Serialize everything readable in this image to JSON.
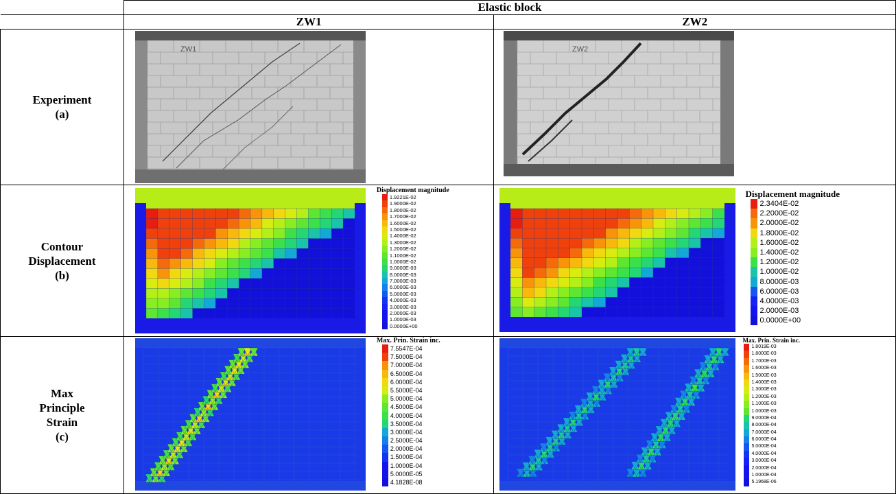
{
  "header": {
    "group": "Elastic block",
    "col1": "ZW1",
    "col2": "ZW2"
  },
  "rows": [
    {
      "label": [
        "Experiment",
        "(a)"
      ]
    },
    {
      "label": [
        "Contour",
        "Displacement",
        "(b)"
      ]
    },
    {
      "label": [
        "Max",
        "Principle",
        "Strain",
        "(c)"
      ]
    }
  ],
  "photos": {
    "zw1_tag": "ZW1",
    "zw2_tag": "ZW2"
  },
  "legends": {
    "disp_zw1": {
      "title": "Displacement magnitude",
      "values": [
        "1.9221E-02",
        "1.9000E-02",
        "1.8000E-02",
        "1.7000E-02",
        "1.6000E-02",
        "1.5000E-02",
        "1.4000E-02",
        "1.3000E-02",
        "1.2000E-02",
        "1.1000E-02",
        "1.0000E-02",
        "9.0000E-03",
        "8.0000E-03",
        "7.0000E-03",
        "6.0000E-03",
        "5.0000E-03",
        "4.0000E-03",
        "3.0000E-03",
        "2.0000E-03",
        "1.0000E-03",
        "0.0000E+00"
      ]
    },
    "disp_zw2": {
      "title": "Displacement magnitude",
      "values": [
        "2.3404E-02",
        "2.2000E-02",
        "2.0000E-02",
        "1.8000E-02",
        "1.6000E-02",
        "1.4000E-02",
        "1.2000E-02",
        "1.0000E-02",
        "8.0000E-03",
        "6.0000E-03",
        "4.0000E-03",
        "2.0000E-03",
        "0.0000E+00"
      ]
    },
    "strain_zw1": {
      "title": "Max. Prin. Strain inc.",
      "values": [
        "7.5547E-04",
        "7.5000E-04",
        "7.0000E-04",
        "6.5000E-04",
        "6.0000E-04",
        "5.5000E-04",
        "5.0000E-04",
        "4.5000E-04",
        "4.0000E-04",
        "3.5000E-04",
        "3.0000E-04",
        "2.5000E-04",
        "2.0000E-04",
        "1.5000E-04",
        "1.0000E-04",
        "5.0000E-05",
        "4.1828E-08"
      ]
    },
    "strain_zw2": {
      "title": "Max. Prin. Strain inc.",
      "values": [
        "1.8019E-03",
        "1.8000E-03",
        "1.7000E-03",
        "1.6000E-03",
        "1.5000E-03",
        "1.4000E-03",
        "1.3000E-03",
        "1.2000E-03",
        "1.1000E-03",
        "1.0000E-03",
        "9.0000E-04",
        "8.0000E-04",
        "7.0000E-04",
        "6.0000E-04",
        "5.0000E-04",
        "4.0000E-04",
        "3.0000E-04",
        "2.0000E-04",
        "1.0000E-04",
        "5.1968E-06"
      ]
    }
  },
  "colors": {
    "scale": [
      "#e81c10",
      "#f0400c",
      "#f56a0a",
      "#f8930a",
      "#f8b80c",
      "#f2d810",
      "#d8ec10",
      "#b4f018",
      "#88ee22",
      "#5ee632",
      "#3ce048",
      "#24d674",
      "#1ac4a8",
      "#14a8d6",
      "#1482ea",
      "#1458f0",
      "#1434f4",
      "#1422f6",
      "#1414f0",
      "#1414e6",
      "#1410dc"
    ]
  }
}
